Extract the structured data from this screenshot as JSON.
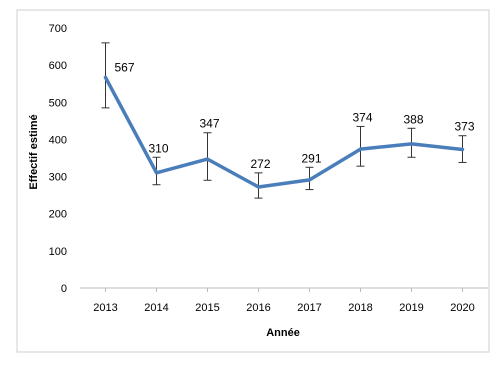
{
  "chart_data": {
    "type": "line",
    "title": "",
    "xlabel": "Année",
    "ylabel": "Effectif estimé",
    "categories": [
      "2013",
      "2014",
      "2015",
      "2016",
      "2017",
      "2018",
      "2019",
      "2020"
    ],
    "series": [
      {
        "values": [
          567,
          310,
          347,
          272,
          291,
          374,
          388,
          373
        ],
        "error_low": [
          485,
          278,
          290,
          242,
          265,
          328,
          352,
          338
        ],
        "error_high": [
          660,
          352,
          418,
          310,
          325,
          435,
          430,
          410
        ],
        "color": "#4a7ebb"
      }
    ],
    "data_labels": [
      "567",
      "310",
      "347",
      "272",
      "291",
      "374",
      "388",
      "373"
    ],
    "ylim": [
      0,
      700
    ],
    "yticks": [
      0,
      100,
      200,
      300,
      400,
      500,
      600,
      700
    ],
    "ytick_labels": [
      "0",
      "100",
      "200",
      "300",
      "400",
      "500",
      "600",
      "700"
    ],
    "grid": false,
    "legend": "none"
  }
}
